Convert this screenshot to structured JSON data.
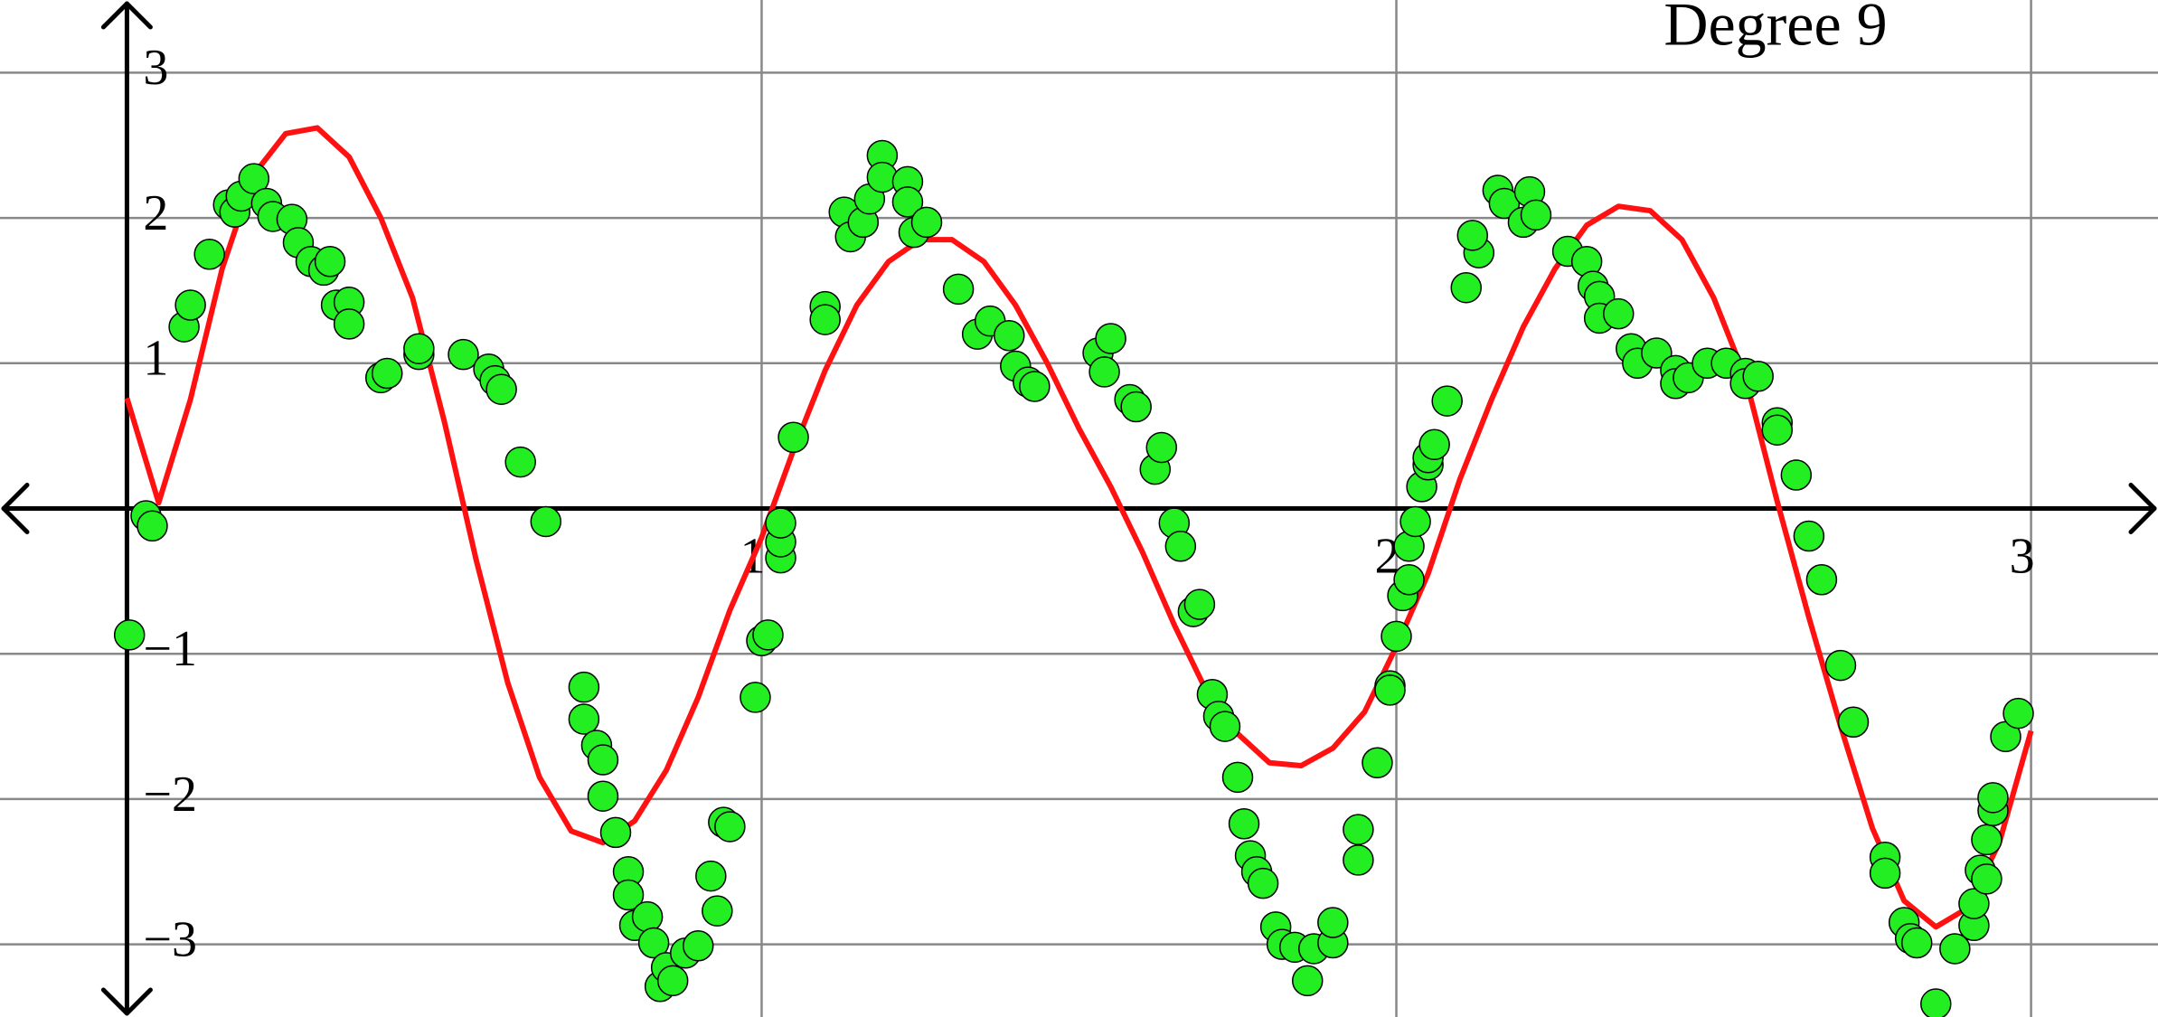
{
  "chart_data": {
    "type": "scatter",
    "title": "Degree 9",
    "xlim": [
      -0.2,
      3.2
    ],
    "ylim": [
      -3.5,
      3.5
    ],
    "xticks": [
      1,
      2,
      3
    ],
    "yticks": [
      {
        "value": -3,
        "label": "−3"
      },
      {
        "value": -2,
        "label": "−2"
      },
      {
        "value": -1,
        "label": "−1"
      },
      1,
      2,
      3
    ],
    "grid": true,
    "series": [
      {
        "type": "scatter",
        "color": "#22ee22",
        "x": [
          0.004,
          0.03,
          0.04,
          0.09,
          0.1,
          0.13,
          0.16,
          0.17,
          0.18,
          0.2,
          0.22,
          0.23,
          0.26,
          0.27,
          0.29,
          0.31,
          0.32,
          0.33,
          0.35,
          0.35,
          0.4,
          0.41,
          0.46,
          0.46,
          0.53,
          0.57,
          0.58,
          0.59,
          0.62,
          0.66,
          0.72,
          0.72,
          0.74,
          0.75,
          0.75,
          0.77,
          0.79,
          0.79,
          0.8,
          0.82,
          0.83,
          0.84,
          0.85,
          0.86,
          0.88,
          0.9,
          0.92,
          0.93,
          0.94,
          0.95,
          0.99,
          1.0,
          1.01,
          1.03,
          1.03,
          1.03,
          1.05,
          1.1,
          1.1,
          1.13,
          1.14,
          1.16,
          1.17,
          1.19,
          1.19,
          1.23,
          1.23,
          1.24,
          1.26,
          1.31,
          1.34,
          1.36,
          1.39,
          1.4,
          1.42,
          1.43,
          1.53,
          1.54,
          1.55,
          1.58,
          1.59,
          1.62,
          1.63,
          1.65,
          1.66,
          1.68,
          1.69,
          1.71,
          1.72,
          1.73,
          1.75,
          1.76,
          1.77,
          1.78,
          1.79,
          1.81,
          1.82,
          1.84,
          1.86,
          1.87,
          1.9,
          1.9,
          1.94,
          1.94,
          1.97,
          1.99,
          1.99,
          2.0,
          2.01,
          2.02,
          2.02,
          2.03,
          2.04,
          2.05,
          2.05,
          2.06,
          2.08,
          2.11,
          2.13,
          2.12,
          2.16,
          2.17,
          2.2,
          2.21,
          2.22,
          2.27,
          2.3,
          2.31,
          2.32,
          2.32,
          2.35,
          2.37,
          2.38,
          2.41,
          2.44,
          2.44,
          2.46,
          2.49,
          2.52,
          2.55,
          2.55,
          2.57,
          2.6,
          2.6,
          2.63,
          2.65,
          2.67,
          2.7,
          2.72,
          2.77,
          2.77,
          2.8,
          2.81,
          2.82,
          2.85,
          2.88,
          2.91,
          2.91,
          2.92,
          2.93,
          2.93,
          2.94,
          2.94,
          2.96,
          2.98
        ],
        "values": [
          -0.87,
          -0.05,
          -0.12,
          1.25,
          1.4,
          1.75,
          2.09,
          2.04,
          2.15,
          2.27,
          2.1,
          2.01,
          1.99,
          1.83,
          1.7,
          1.64,
          1.7,
          1.4,
          1.42,
          1.27,
          0.9,
          0.93,
          1.06,
          1.1,
          1.06,
          0.96,
          0.88,
          0.82,
          0.32,
          -0.09,
          -1.23,
          -1.45,
          -1.63,
          -1.73,
          -1.98,
          -2.23,
          -2.5,
          -2.66,
          -2.87,
          -2.81,
          -2.99,
          -3.29,
          -3.16,
          -3.25,
          -3.06,
          -3.01,
          -2.53,
          -2.77,
          -2.16,
          -2.19,
          -1.3,
          -0.91,
          -0.87,
          -0.34,
          -0.23,
          -0.1,
          0.49,
          1.39,
          1.3,
          2.04,
          1.87,
          1.97,
          2.13,
          2.43,
          2.28,
          2.25,
          2.11,
          1.9,
          1.97,
          1.51,
          1.2,
          1.29,
          1.19,
          0.98,
          0.87,
          0.84,
          1.07,
          0.94,
          1.17,
          0.75,
          0.7,
          0.27,
          0.42,
          -0.1,
          -0.26,
          -0.71,
          -0.66,
          -1.28,
          -1.43,
          -1.5,
          -1.85,
          -2.17,
          -2.39,
          -2.5,
          -2.58,
          -2.88,
          -3.0,
          -3.02,
          -3.25,
          -3.03,
          -2.99,
          -2.85,
          -2.21,
          -2.42,
          -1.75,
          -1.22,
          -1.25,
          -0.88,
          -0.6,
          -0.49,
          -0.26,
          -0.09,
          0.15,
          0.3,
          0.35,
          0.44,
          0.74,
          1.52,
          1.76,
          1.88,
          2.19,
          2.1,
          1.97,
          2.18,
          2.02,
          1.77,
          1.7,
          1.53,
          1.46,
          1.31,
          1.34,
          1.1,
          1.0,
          1.07,
          0.95,
          0.86,
          0.9,
          1.0,
          1.0,
          0.93,
          0.86,
          0.91,
          0.59,
          0.54,
          0.23,
          -0.19,
          -0.49,
          -1.08,
          -1.47,
          -2.4,
          -2.51,
          -2.85,
          -2.96,
          -2.99,
          -3.41,
          -3.03,
          -2.87,
          -2.72,
          -2.49,
          -2.55,
          -2.28,
          -2.08,
          -1.99,
          -1.57,
          -1.41
        ]
      },
      {
        "type": "line",
        "color": "#ff1111",
        "x": [
          0,
          0.05,
          0.1,
          0.15,
          0.2,
          0.25,
          0.3,
          0.35,
          0.4,
          0.45,
          0.5,
          0.55,
          0.6,
          0.65,
          0.7,
          0.75,
          0.8,
          0.85,
          0.9,
          0.95,
          1.0,
          1.05,
          1.1,
          1.15,
          1.2,
          1.25,
          1.3,
          1.35,
          1.4,
          1.45,
          1.5,
          1.55,
          1.6,
          1.65,
          1.7,
          1.75,
          1.8,
          1.85,
          1.9,
          1.95,
          2.0,
          2.05,
          2.1,
          2.15,
          2.2,
          2.25,
          2.3,
          2.35,
          2.4,
          2.45,
          2.5,
          2.55,
          2.6,
          2.65,
          2.7,
          2.75,
          2.8,
          2.85,
          2.9,
          2.95,
          3.0
        ],
        "values": [
          0.76,
          0.04,
          0.75,
          1.65,
          2.3,
          2.58,
          2.62,
          2.42,
          2.0,
          1.45,
          0.6,
          -0.35,
          -1.2,
          -1.85,
          -2.22,
          -2.3,
          -2.15,
          -1.8,
          -1.3,
          -0.7,
          -0.2,
          0.4,
          0.95,
          1.4,
          1.7,
          1.85,
          1.85,
          1.7,
          1.4,
          1.0,
          0.55,
          0.15,
          -0.3,
          -0.8,
          -1.25,
          -1.55,
          -1.75,
          -1.77,
          -1.65,
          -1.4,
          -0.95,
          -0.45,
          0.2,
          0.75,
          1.25,
          1.65,
          1.95,
          2.08,
          2.05,
          1.85,
          1.45,
          0.9,
          0.05,
          -0.75,
          -1.5,
          -2.2,
          -2.7,
          -2.88,
          -2.75,
          -2.3,
          -1.53
        ]
      }
    ]
  }
}
